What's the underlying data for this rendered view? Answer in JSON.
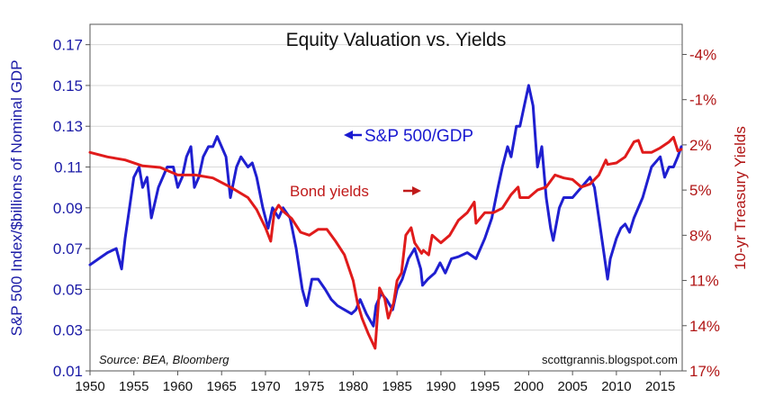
{
  "chart_data": {
    "type": "line",
    "title": "Equity Valuation vs. Yields",
    "ylabel_left": "S&P 500 Index/$billions of Nominal GDP",
    "ylabel_right": "10-yr Treasury Yields",
    "xlim": [
      1950,
      2017.5
    ],
    "ylim_left": [
      0.01,
      0.18
    ],
    "ylim_right_inverted": [
      -6,
      17
    ],
    "right_axis_inverted": true,
    "grid": "horizontal",
    "x_ticks": [
      "1950",
      "1955",
      "1960",
      "1965",
      "1970",
      "1975",
      "1980",
      "1985",
      "1990",
      "1995",
      "2000",
      "2005",
      "2010",
      "2015"
    ],
    "y_left_ticks": [
      "0.01",
      "0.03",
      "0.05",
      "0.07",
      "0.09",
      "0.11",
      "0.13",
      "0.15",
      "0.17"
    ],
    "y_right_ticks": [
      "-4%",
      "-1%",
      "2%",
      "5%",
      "8%",
      "11%",
      "14%",
      "17%"
    ],
    "annotations": {
      "sp500": "S&P 500/GDP",
      "bond": "Bond yields"
    },
    "source": "Source: BEA, Bloomberg",
    "credit": "scottgrannis.blogspot.com",
    "colors": {
      "sp500": "#1f1fd0",
      "bond": "#e01b1b",
      "left_axis": "#1a1aa6",
      "right_axis": "#b01515"
    },
    "series": [
      {
        "name": "S&P 500/GDP",
        "axis": "left",
        "x": [
          1950,
          1951,
          1952,
          1953,
          1953.6,
          1954,
          1954.5,
          1955,
          1955.6,
          1956,
          1956.5,
          1957,
          1957.8,
          1958.3,
          1958.8,
          1959.5,
          1960,
          1960.5,
          1961,
          1961.5,
          1961.9,
          1962.4,
          1962.9,
          1963.5,
          1964,
          1964.5,
          1965,
          1965.5,
          1966,
          1966.7,
          1967.2,
          1968,
          1968.5,
          1969,
          1969.7,
          1970.3,
          1970.8,
          1971.5,
          1972,
          1972.8,
          1973.5,
          1974.2,
          1974.7,
          1975.3,
          1976,
          1976.8,
          1977.5,
          1978.2,
          1979,
          1979.8,
          1980.3,
          1980.8,
          1981.5,
          1982.3,
          1982.6,
          1983.2,
          1983.8,
          1984.5,
          1985,
          1985.6,
          1986.3,
          1987,
          1987.7,
          1987.9,
          1988.5,
          1989.3,
          1989.9,
          1990.5,
          1991.2,
          1992,
          1993,
          1994,
          1995,
          1995.8,
          1996.5,
          1997,
          1997.6,
          1998,
          1998.6,
          1999,
          1999.5,
          2000,
          2000.5,
          2001,
          2001.5,
          2002,
          2002.5,
          2002.8,
          2003.5,
          2004,
          2005,
          2006,
          2007,
          2007.5,
          2008,
          2008.5,
          2009,
          2009.3,
          2010,
          2010.5,
          2011,
          2011.5,
          2012,
          2013,
          2014,
          2015,
          2015.5,
          2016,
          2016.5,
          2017,
          2017.4
        ],
        "values": [
          0.062,
          0.065,
          0.068,
          0.07,
          0.06,
          0.075,
          0.09,
          0.105,
          0.11,
          0.1,
          0.105,
          0.085,
          0.1,
          0.105,
          0.11,
          0.11,
          0.1,
          0.105,
          0.115,
          0.12,
          0.1,
          0.105,
          0.115,
          0.12,
          0.12,
          0.125,
          0.12,
          0.115,
          0.095,
          0.11,
          0.115,
          0.11,
          0.112,
          0.105,
          0.09,
          0.08,
          0.09,
          0.085,
          0.09,
          0.085,
          0.07,
          0.05,
          0.042,
          0.055,
          0.055,
          0.05,
          0.045,
          0.042,
          0.04,
          0.038,
          0.04,
          0.045,
          0.038,
          0.032,
          0.042,
          0.048,
          0.045,
          0.04,
          0.05,
          0.055,
          0.065,
          0.07,
          0.06,
          0.052,
          0.055,
          0.058,
          0.063,
          0.058,
          0.065,
          0.066,
          0.068,
          0.065,
          0.075,
          0.085,
          0.1,
          0.11,
          0.12,
          0.115,
          0.13,
          0.13,
          0.14,
          0.15,
          0.14,
          0.11,
          0.12,
          0.095,
          0.08,
          0.074,
          0.09,
          0.095,
          0.095,
          0.1,
          0.105,
          0.1,
          0.085,
          0.07,
          0.055,
          0.065,
          0.075,
          0.08,
          0.082,
          0.078,
          0.085,
          0.095,
          0.11,
          0.115,
          0.105,
          0.11,
          0.11,
          0.115,
          0.12
        ]
      },
      {
        "name": "Bond yields",
        "axis": "right",
        "x": [
          1950,
          1952,
          1954,
          1956,
          1958,
          1960,
          1962,
          1964,
          1966,
          1968,
          1969,
          1970,
          1970.6,
          1971,
          1971.5,
          1972,
          1973,
          1974,
          1975,
          1976,
          1977,
          1978,
          1979,
          1980,
          1980.5,
          1981,
          1981.7,
          1982.5,
          1983,
          1983.6,
          1984,
          1984.6,
          1985,
          1985.5,
          1986,
          1986.6,
          1987,
          1987.8,
          1988,
          1988.6,
          1989,
          1990,
          1991,
          1992,
          1993,
          1993.8,
          1994,
          1995,
          1996,
          1997,
          1998,
          1998.8,
          1999,
          2000,
          2001,
          2002,
          2003,
          2004,
          2005,
          2006,
          2007,
          2008,
          2008.8,
          2009,
          2010,
          2011,
          2012,
          2012.5,
          2013,
          2014,
          2015,
          2016,
          2016.5,
          2017,
          2017.4
        ],
        "values": [
          2.5,
          2.8,
          3.0,
          3.4,
          3.5,
          4.0,
          4.0,
          4.2,
          4.8,
          5.5,
          6.3,
          7.5,
          8.4,
          6.5,
          6.0,
          6.4,
          6.9,
          7.8,
          8.0,
          7.6,
          7.6,
          8.4,
          9.3,
          11.0,
          12.5,
          13.5,
          14.5,
          15.5,
          11.5,
          12.2,
          13.5,
          12.5,
          11.0,
          10.5,
          8.0,
          7.5,
          8.5,
          9.2,
          9.0,
          9.3,
          8.0,
          8.5,
          8.0,
          7.0,
          6.5,
          5.8,
          7.2,
          6.5,
          6.5,
          6.2,
          5.3,
          4.8,
          5.5,
          5.5,
          5.0,
          4.8,
          4.0,
          4.2,
          4.3,
          4.8,
          4.6,
          4.0,
          3.0,
          3.3,
          3.2,
          2.8,
          1.8,
          1.7,
          2.5,
          2.5,
          2.2,
          1.8,
          1.5,
          2.4,
          2.3
        ]
      }
    ]
  }
}
